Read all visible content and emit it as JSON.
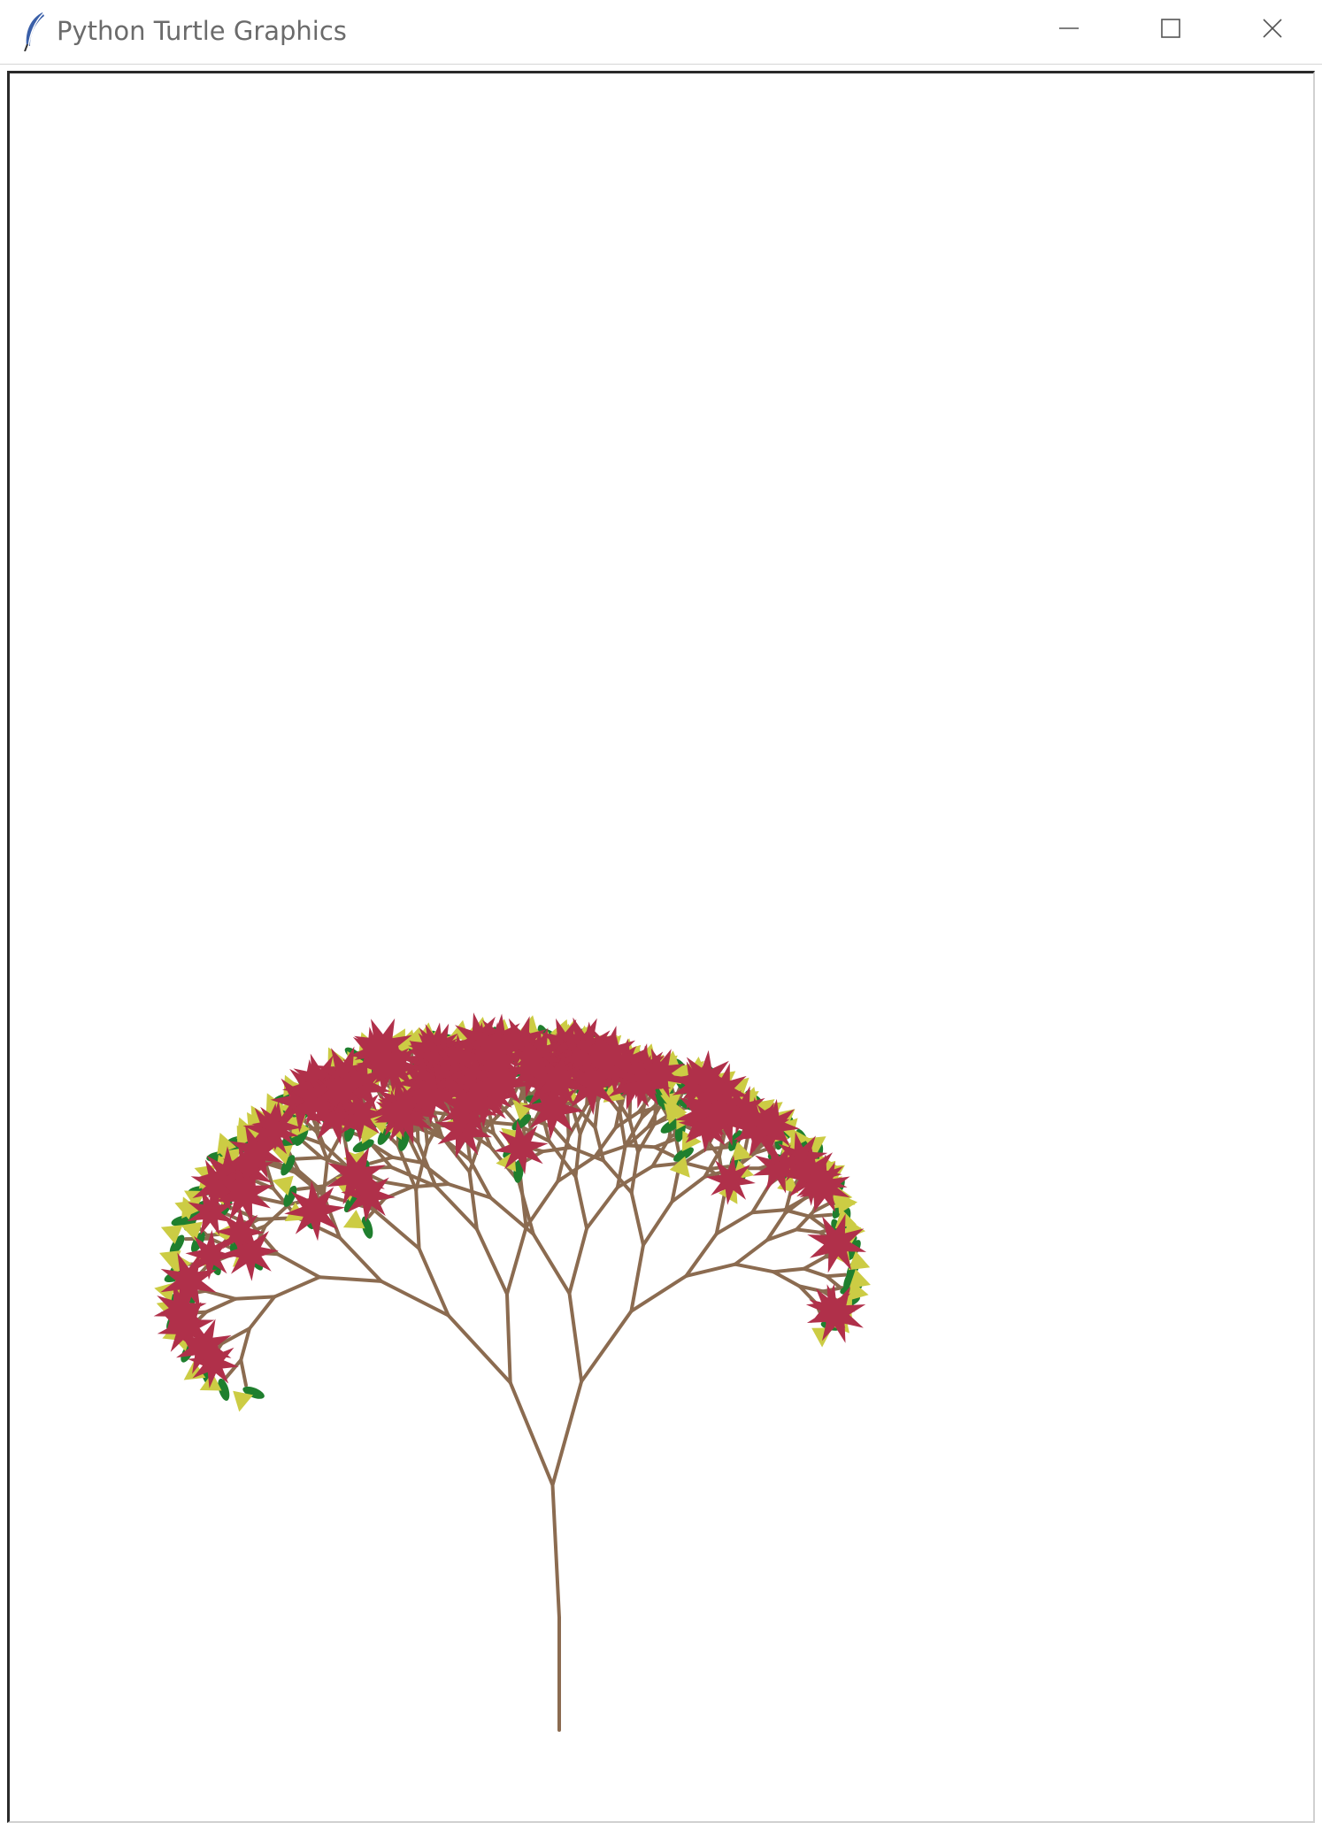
{
  "window": {
    "title": "Python Turtle Graphics",
    "icon": "feather-icon",
    "controls": {
      "minimize": "minimize-icon",
      "maximize": "maximize-icon",
      "close": "close-icon"
    }
  },
  "canvas": {
    "background": "#ffffff",
    "drawing": "fractal-tree",
    "colors": {
      "branch": "#8b6b50",
      "leaf": "#1f7f2e",
      "bud": "#cccc44",
      "flower": "#b0304a"
    }
  }
}
